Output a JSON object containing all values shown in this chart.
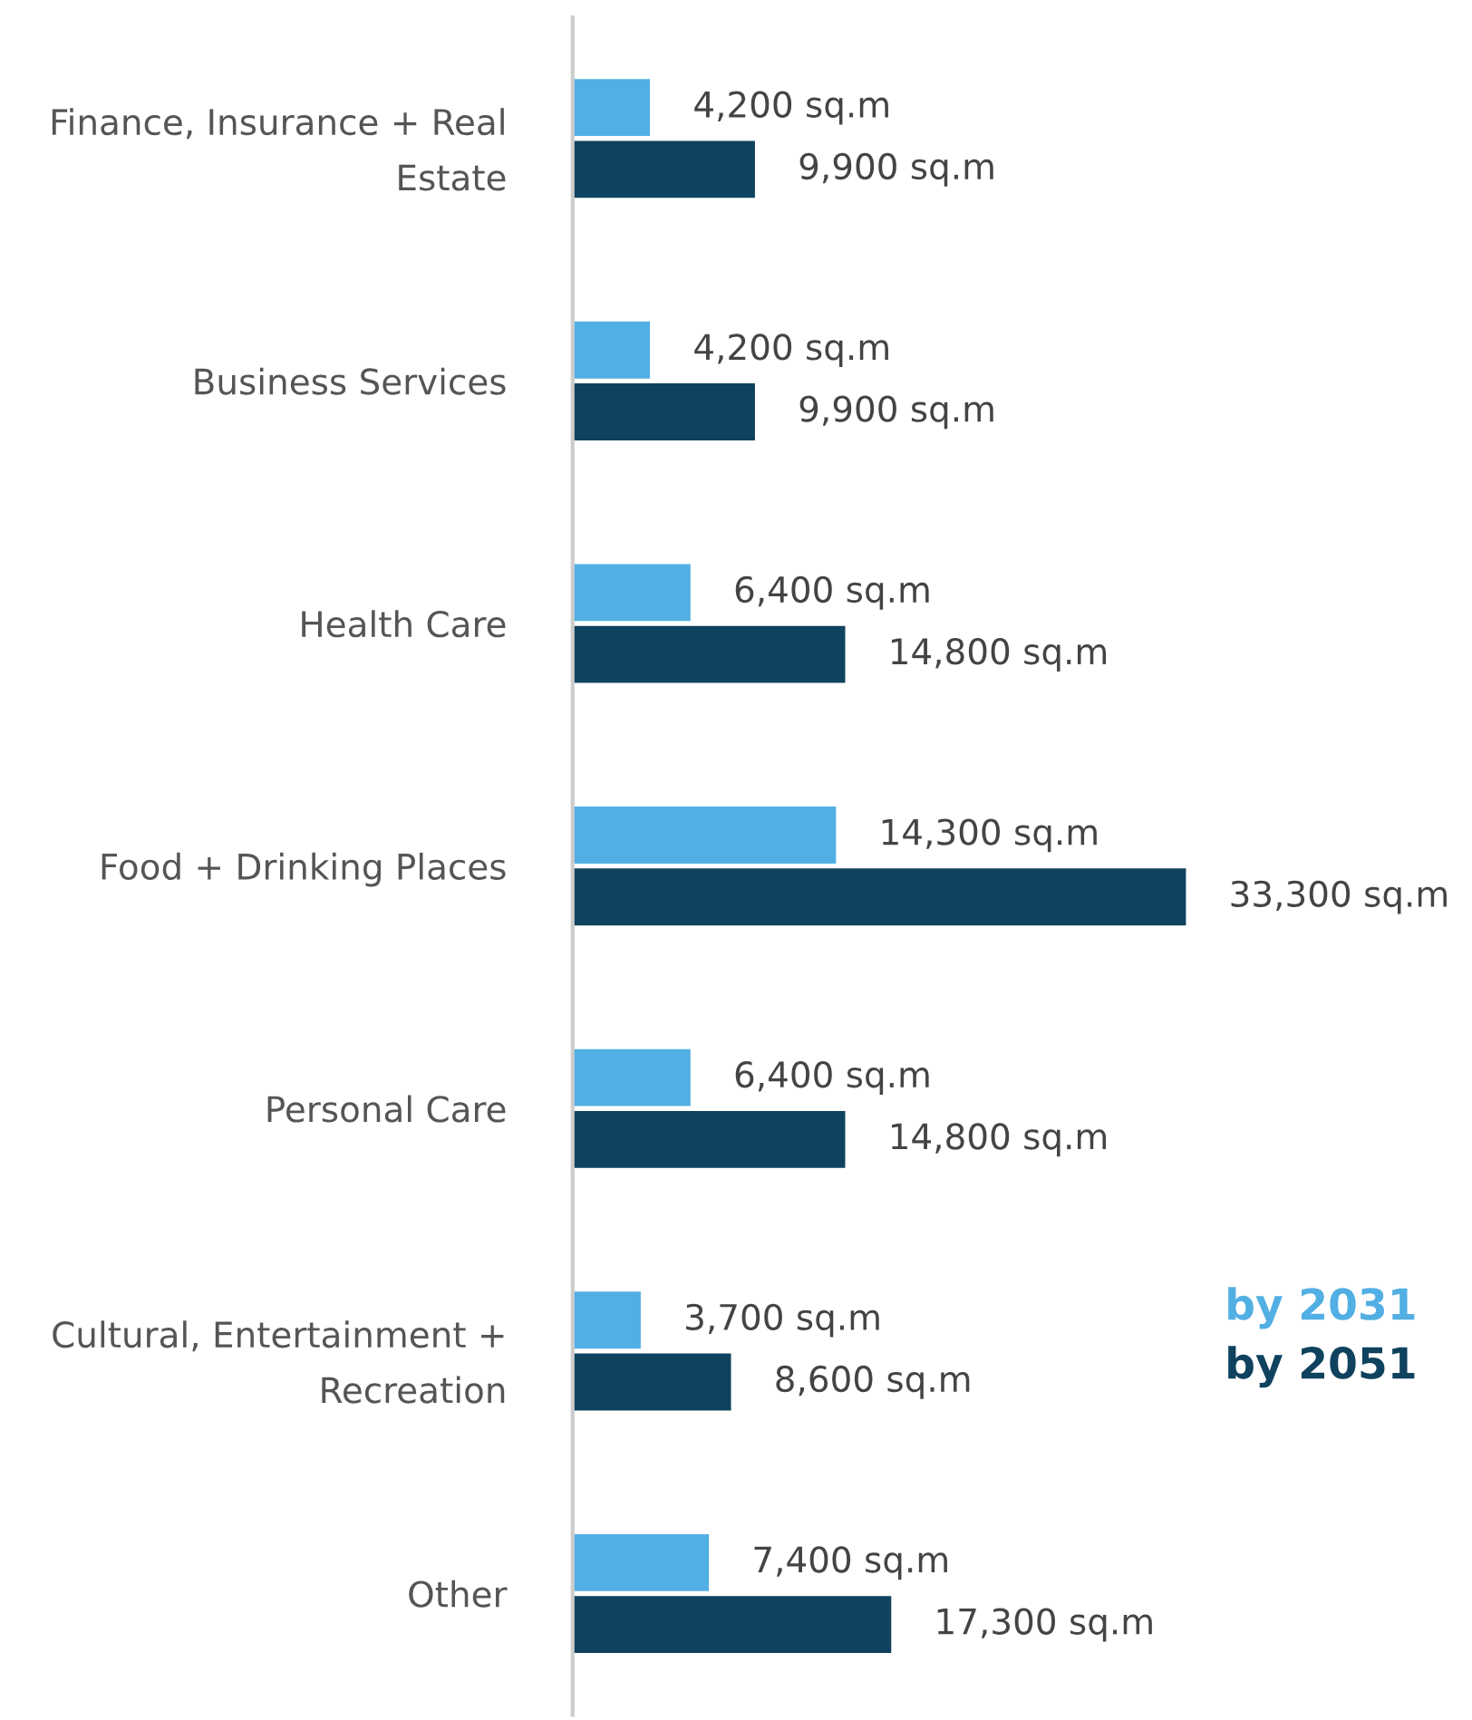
{
  "chart_data": {
    "type": "bar",
    "orientation": "horizontal",
    "categories": [
      "Finance, Insurance + Real\nEstate",
      "Business Services",
      "Health Care",
      "Food + Drinking Places",
      "Personal Care",
      "Cultural, Entertainment +\nRecreation",
      "Other"
    ],
    "series": [
      {
        "name": "by 2031",
        "color": "#52afe3",
        "values": [
          4200,
          4200,
          6400,
          14300,
          6400,
          3700,
          7400
        ],
        "value_labels": [
          "4,200 sq.m",
          "4,200 sq.m",
          "6,400 sq.m",
          "14,300 sq.m",
          "6,400 sq.m",
          "3,700 sq.m",
          "7,400 sq.m"
        ]
      },
      {
        "name": "by 2051",
        "color": "#0f425e",
        "values": [
          9900,
          9900,
          14800,
          33300,
          14800,
          8600,
          17300
        ],
        "value_labels": [
          "9,900 sq.m",
          "9,900 sq.m",
          "14,800 sq.m",
          "33,300 sq.m",
          "14,800 sq.m",
          "8,600 sq.m",
          "17,300 sq.m"
        ]
      }
    ],
    "legend": "bottom right",
    "grid": false
  }
}
